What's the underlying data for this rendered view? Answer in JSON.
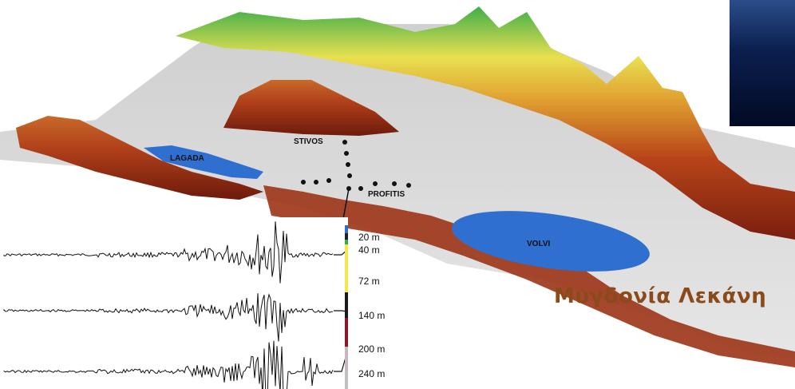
{
  "lakes": {
    "lagada": "LAGADA",
    "volvi": "VOLVI"
  },
  "stations": {
    "stivos": "STIVOS",
    "profitis": "PROFITIS"
  },
  "basin_title": "Μυγδονία Λεκάνη",
  "borehole": {
    "depths": [
      "20 m",
      "40 m",
      "72 m",
      "140 m",
      "200 m",
      "240 m"
    ]
  },
  "seismograms": {
    "count": 3
  },
  "colors": {
    "lake": "#2f6fd0",
    "lowland": "#d9d9d9",
    "mid_relief": "#b0401a",
    "high_relief": "#3aa84a",
    "title": "#8a4a1a"
  }
}
